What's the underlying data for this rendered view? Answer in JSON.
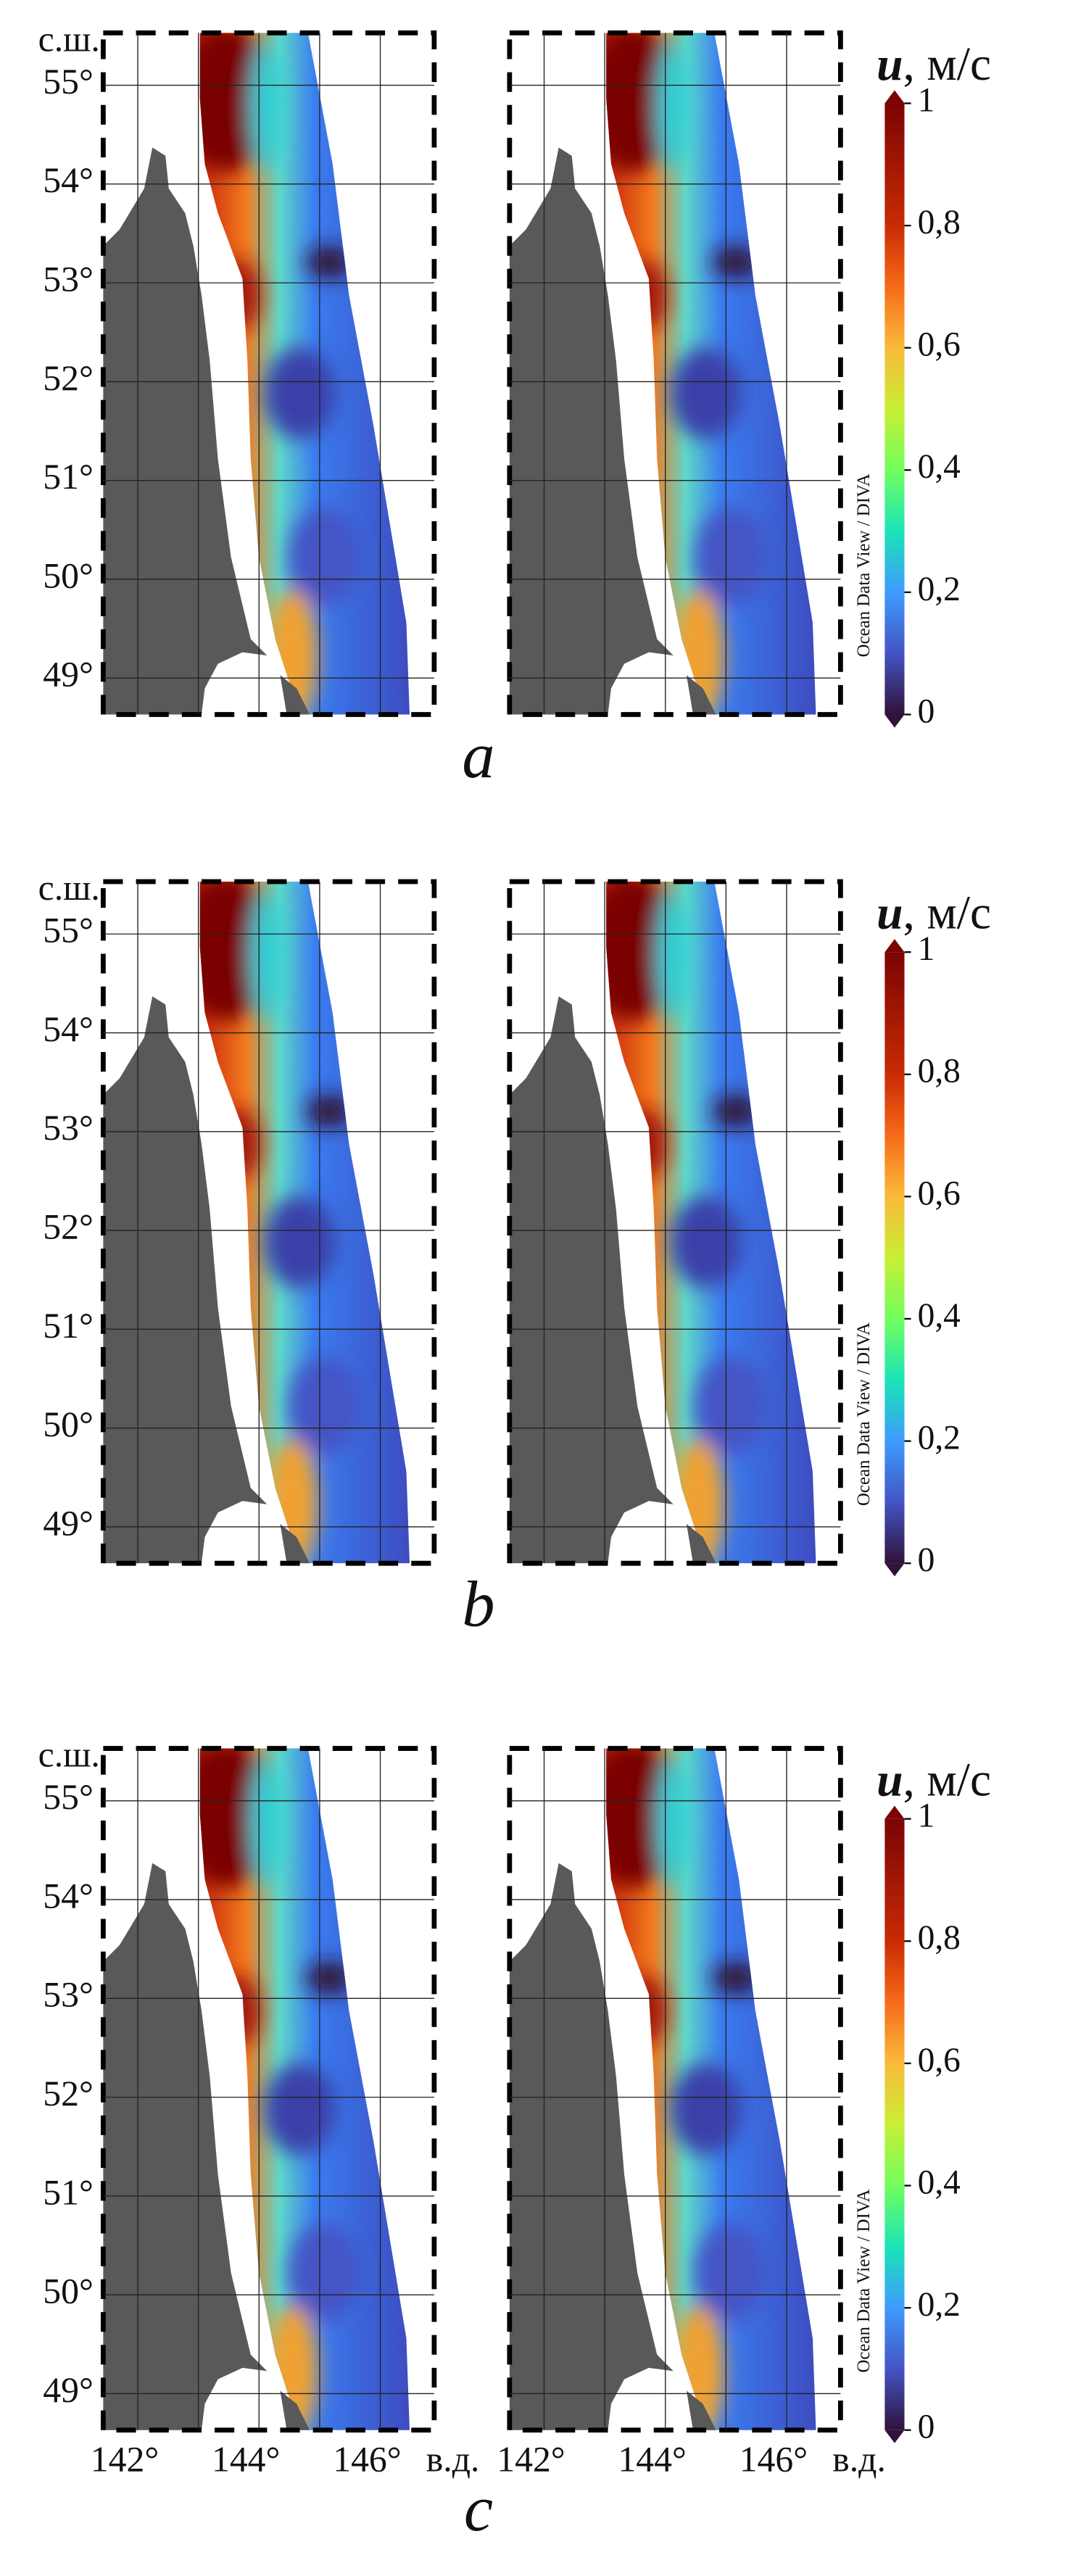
{
  "figure": {
    "lat_label": "с.ш.",
    "lon_label": "в.д.",
    "lat_ticks": [
      {
        "value": 55,
        "label": "55°"
      },
      {
        "value": 54,
        "label": "54°"
      },
      {
        "value": 53,
        "label": "53°"
      },
      {
        "value": 52,
        "label": "52°"
      },
      {
        "value": 51,
        "label": "51°"
      },
      {
        "value": 50,
        "label": "50°"
      },
      {
        "value": 49,
        "label": "49°"
      }
    ],
    "lon_ticks": [
      {
        "value": 142,
        "label": "142°"
      },
      {
        "value": 144,
        "label": "144°"
      },
      {
        "value": 146,
        "label": "146°"
      }
    ],
    "colorbar": {
      "title": [
        "u",
        ", м/с"
      ],
      "range": [
        0,
        1
      ],
      "ticks": [
        0,
        {
          "value": 0.2,
          "label": "0,2"
        },
        {
          "value": 0.4,
          "label": "0,4"
        },
        {
          "value": 0.6,
          "label": "0,6"
        },
        {
          "value": 0.8,
          "label": "0,8"
        },
        1
      ],
      "credit": "Ocean Data View / DIVA"
    },
    "panels": [
      {
        "label": "a"
      },
      {
        "label": "b"
      },
      {
        "label": "c"
      }
    ]
  }
}
